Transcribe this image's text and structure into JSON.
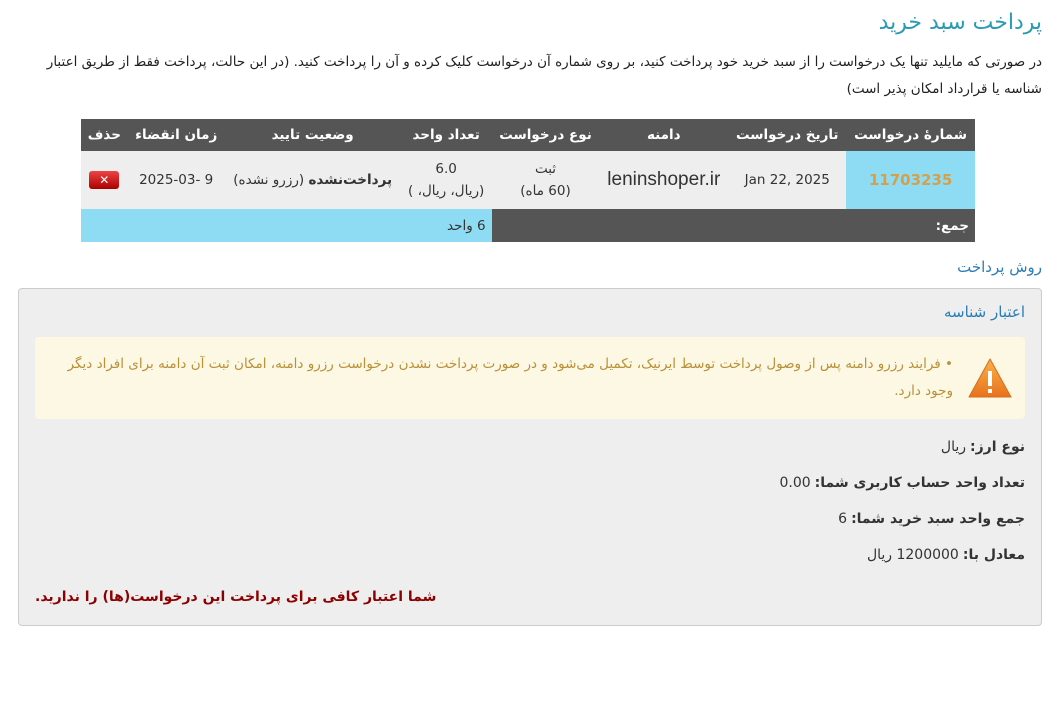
{
  "title": "پرداخت سبد خرید",
  "intro": "در صورتی که مایلید تنها یک درخواست را از سبد خرید خود پرداخت کنید، بر روی شماره آن درخواست کلیک کرده و آن را پرداخت کنید. (در این حالت، پرداخت فقط از طریق اعتبار شناسه یا قرارداد امکان پذیر است)",
  "table": {
    "headers": [
      "شمارهٔ درخواست",
      "تاریخ درخواست",
      "دامنه",
      "نوع درخواست",
      "تعداد واحد",
      "وضعیت تایید",
      "زمان انقضاء",
      "حذف"
    ],
    "row": {
      "id": "11703235",
      "date": "Jan 22, 2025",
      "domain": "leninshoper.ir",
      "type": "ثبت",
      "period": "(60 ماه)",
      "units": "6.0",
      "units_sub": "(ریال، ریال، )",
      "status": "پرداخت‌نشده",
      "status_sub": "(رزرو نشده)",
      "expiry": "2025-03- 9",
      "delete": "✕"
    },
    "total_label": "جمع:",
    "total_value": "6 واحد"
  },
  "payment_method": "روش پرداخت",
  "box": {
    "title": "اعتبار شناسه",
    "alert": "فرایند رزرو دامنه پس از وصول پرداخت توسط ایرنیک، تکمیل می‌شود و در صورت پرداخت نشدن درخواست رزرو دامنه، امکان ثبت آن دامنه برای افراد دیگر وجود دارد.",
    "rows": [
      {
        "label": "نوع ارز:",
        "value": "ریال"
      },
      {
        "label": "تعداد واحد حساب کاربری شما:",
        "value": "0.00"
      },
      {
        "label": "جمع واحد سبد خرید شما:",
        "value": "6"
      },
      {
        "label": "معادل با:",
        "value": "1200000 ریال"
      }
    ],
    "error": "شما اعتبار کافی برای پرداخت این درخواست(ها) را ندارید."
  }
}
